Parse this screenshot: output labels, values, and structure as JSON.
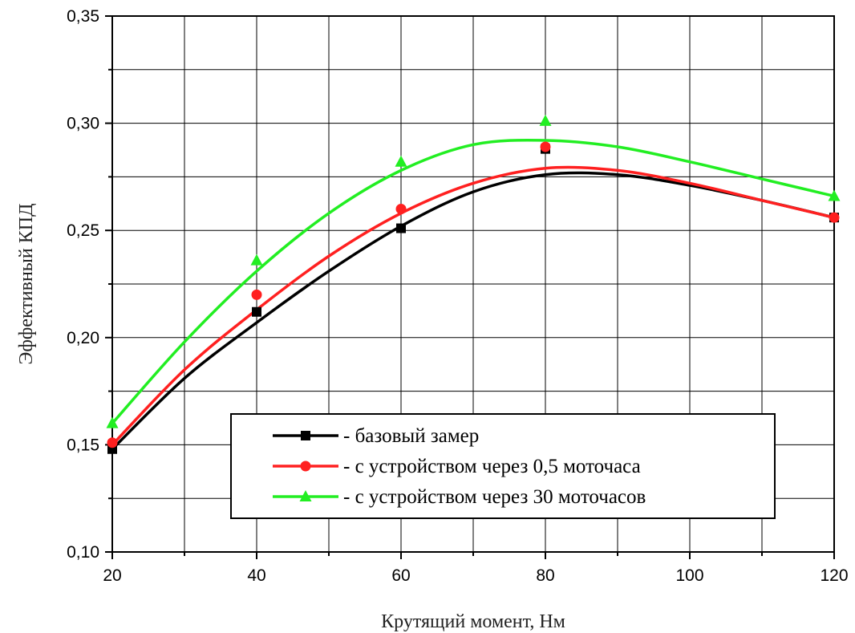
{
  "chart_data": {
    "type": "line",
    "xlabel": "Крутящий момент, Нм",
    "ylabel": "Эффективный КПД",
    "xlim": [
      20,
      120
    ],
    "ylim": [
      0.1,
      0.35
    ],
    "x_ticks": [
      "20",
      "40",
      "60",
      "80",
      "100",
      "120"
    ],
    "y_ticks": [
      "0,10",
      "0,15",
      "0,20",
      "0,25",
      "0,30",
      "0,35"
    ],
    "grid": true,
    "legend_position": "bottom-right",
    "series": [
      {
        "name": "- базовый замер",
        "color": "#000000",
        "marker": "square",
        "points": [
          [
            20,
            0.148
          ],
          [
            40,
            0.212
          ],
          [
            60,
            0.251
          ],
          [
            80,
            0.288
          ],
          [
            120,
            0.256
          ]
        ],
        "curve": [
          [
            20,
            0.148
          ],
          [
            30,
            0.181
          ],
          [
            40,
            0.207
          ],
          [
            50,
            0.231
          ],
          [
            60,
            0.252
          ],
          [
            70,
            0.268
          ],
          [
            80,
            0.276
          ],
          [
            90,
            0.276
          ],
          [
            100,
            0.271
          ],
          [
            110,
            0.264
          ],
          [
            120,
            0.256
          ]
        ]
      },
      {
        "name": "- с устройством через 0,5 моточаса",
        "color": "#ff2020",
        "marker": "circle",
        "points": [
          [
            20,
            0.151
          ],
          [
            40,
            0.22
          ],
          [
            60,
            0.26
          ],
          [
            80,
            0.289
          ],
          [
            120,
            0.256
          ]
        ],
        "curve": [
          [
            20,
            0.15
          ],
          [
            30,
            0.185
          ],
          [
            40,
            0.213
          ],
          [
            50,
            0.238
          ],
          [
            60,
            0.258
          ],
          [
            70,
            0.272
          ],
          [
            80,
            0.279
          ],
          [
            90,
            0.278
          ],
          [
            100,
            0.272
          ],
          [
            110,
            0.264
          ],
          [
            120,
            0.256
          ]
        ]
      },
      {
        "name": "- с устройством через 30 моточасов",
        "color": "#22ee22",
        "marker": "triangle",
        "points": [
          [
            20,
            0.16
          ],
          [
            40,
            0.236
          ],
          [
            60,
            0.282
          ],
          [
            80,
            0.301
          ],
          [
            120,
            0.266
          ]
        ],
        "curve": [
          [
            20,
            0.16
          ],
          [
            30,
            0.198
          ],
          [
            40,
            0.231
          ],
          [
            50,
            0.258
          ],
          [
            60,
            0.278
          ],
          [
            70,
            0.29
          ],
          [
            80,
            0.292
          ],
          [
            90,
            0.289
          ],
          [
            100,
            0.282
          ],
          [
            110,
            0.274
          ],
          [
            120,
            0.266
          ]
        ]
      }
    ]
  }
}
